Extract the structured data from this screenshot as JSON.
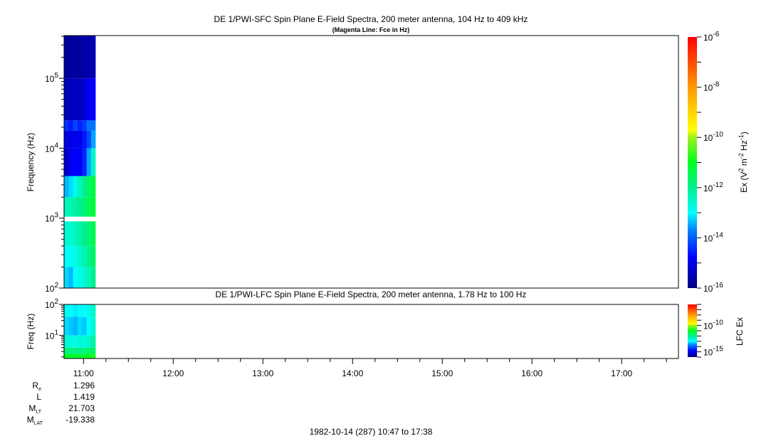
{
  "chart_data": [
    {
      "type": "heatmap",
      "title": "DE 1/PWI-SFC  Spin Plane E-Field Spectra, 200 meter antenna, 104 Hz to 409 kHz",
      "subtitle": "(Magenta Line: Fce in Hz)",
      "ylabel": "Frequency (Hz)",
      "yscale": "log",
      "ylim": [
        100,
        409000
      ],
      "y_ticks": [
        "10^2",
        "10^3",
        "10^4",
        "10^5"
      ],
      "colorbar": {
        "label": "Ex (V^2 m^-2 Hz^-1)",
        "scale": "log",
        "range_log10": [
          -16,
          -6
        ],
        "ticks": [
          "10^-6",
          "10^-8",
          "10^-10",
          "10^-12",
          "10^-14",
          "10^-16"
        ]
      },
      "time_edges": [
        "10:47",
        "10:50",
        "10:53",
        "10:56",
        "10:59",
        "11:02",
        "11:05",
        "11:08"
      ],
      "freq_bins_hz": [
        [
          100,
          200
        ],
        [
          200,
          400
        ],
        [
          400,
          900
        ],
        [
          1050,
          2000
        ],
        [
          2000,
          4000
        ],
        [
          4000,
          10000
        ],
        [
          10000,
          18000
        ],
        [
          18000,
          25000
        ],
        [
          25000,
          100000
        ],
        [
          100000,
          409000
        ]
      ],
      "log10_values": [
        [
          -13.2,
          -13.4,
          -13.0,
          -12.8,
          -12.6,
          -12.4,
          -12.0
        ],
        [
          -13.0,
          -12.9,
          -12.8,
          -12.5,
          -12.3,
          -12.0,
          -11.6
        ],
        [
          -12.6,
          -12.6,
          -12.4,
          -12.2,
          -12.0,
          -11.8,
          -11.4
        ],
        [
          -12.4,
          -12.3,
          -12.2,
          -12.0,
          -11.8,
          -11.5,
          -11.2
        ],
        [
          -13.4,
          -13.2,
          -12.8,
          -12.4,
          -12.0,
          -11.6,
          -11.3
        ],
        [
          -15.2,
          -15.0,
          -14.8,
          -14.9,
          -14.5,
          -13.5,
          -12.5
        ],
        [
          -15.0,
          -15.1,
          -14.9,
          -15.0,
          -14.6,
          -14.2,
          -13.5
        ],
        [
          -14.4,
          -14.6,
          -14.2,
          -14.5,
          -14.3,
          -13.8,
          -13.8
        ],
        [
          -15.4,
          -15.5,
          -15.3,
          -15.4,
          -15.2,
          -15.0,
          -14.8
        ],
        [
          -15.7,
          -15.7,
          -15.7,
          -15.7,
          -15.6,
          -15.6,
          -15.5
        ]
      ]
    },
    {
      "type": "heatmap",
      "title": "DE 1/PWI-LFC  Spin Plane E-Field Spectra, 200 meter antenna, 1.78 Hz to 100 Hz",
      "ylabel": "Freq (Hz)",
      "yscale": "log",
      "ylim": [
        1.78,
        100
      ],
      "y_ticks": [
        "10^1",
        "10^2"
      ],
      "colorbar": {
        "label": "LFC Ex",
        "scale": "log",
        "range_log10": [
          -16,
          -6
        ],
        "ticks": [
          "10^-10",
          "10^-15"
        ]
      },
      "time_edges": [
        "10:47",
        "10:50",
        "10:53",
        "10:56",
        "10:59",
        "11:02",
        "11:05",
        "11:08"
      ],
      "freq_bins_hz": [
        [
          1.78,
          2.5
        ],
        [
          2.5,
          4
        ],
        [
          4,
          10
        ],
        [
          10,
          40
        ],
        [
          40,
          100
        ]
      ],
      "log10_values": [
        [
          -11.0,
          -11.1,
          -11.0,
          -11.2,
          -11.1,
          -11.0,
          -10.8
        ],
        [
          -11.8,
          -11.9,
          -11.8,
          -11.9,
          -11.8,
          -11.7,
          -11.6
        ],
        [
          -12.6,
          -12.7,
          -12.8,
          -12.6,
          -12.7,
          -12.5,
          -12.2
        ],
        [
          -13.2,
          -13.3,
          -13.4,
          -13.2,
          -13.3,
          -13.0,
          -12.6
        ],
        [
          -12.9,
          -13.0,
          -13.1,
          -12.9,
          -13.0,
          -12.8,
          -12.5
        ]
      ]
    }
  ],
  "x_axis": {
    "range": [
      "10:47",
      "17:38"
    ],
    "tick_labels": [
      "11:00",
      "12:00",
      "13:00",
      "14:00",
      "15:00",
      "16:00",
      "17:00"
    ]
  },
  "ephemeris": [
    {
      "label": "R",
      "sub": "e",
      "value": "1.296"
    },
    {
      "label": "L",
      "sub": "",
      "value": "1.419"
    },
    {
      "label": "M",
      "sub": "LT",
      "value": "21.703"
    },
    {
      "label": "M",
      "sub": "LAT",
      "value": "-19.338"
    }
  ],
  "footer": "1982-10-14 (287) 10:47 to 17:38"
}
